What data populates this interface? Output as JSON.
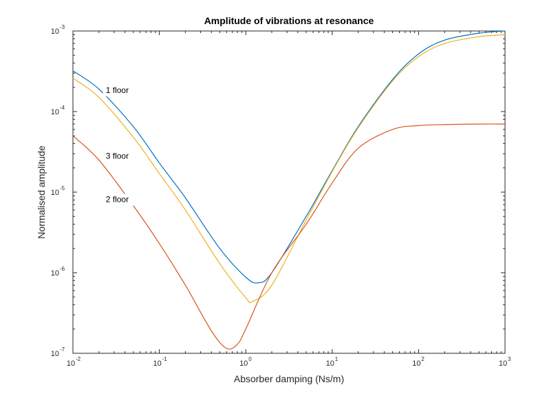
{
  "chart_data": {
    "type": "line",
    "title": "Amplitude of vibrations at resonance",
    "xlabel": "Absorber damping (Ns/m)",
    "ylabel": "Normalised amplitude",
    "xscale": "log",
    "yscale": "log",
    "xlim": [
      0.01,
      1000
    ],
    "ylim": [
      1e-07,
      0.001
    ],
    "grid": false,
    "box": true,
    "x_ticks": [
      {
        "base": "10",
        "exp": "-2",
        "value": 0.01
      },
      {
        "base": "10",
        "exp": "-1",
        "value": 0.1
      },
      {
        "base": "10",
        "exp": "0",
        "value": 1
      },
      {
        "base": "10",
        "exp": "1",
        "value": 10
      },
      {
        "base": "10",
        "exp": "2",
        "value": 100
      },
      {
        "base": "10",
        "exp": "3",
        "value": 1000
      }
    ],
    "y_ticks": [
      {
        "base": "10",
        "exp": "-7",
        "value": 1e-07
      },
      {
        "base": "10",
        "exp": "-6",
        "value": 1e-06
      },
      {
        "base": "10",
        "exp": "-5",
        "value": 1e-05
      },
      {
        "base": "10",
        "exp": "-4",
        "value": 0.0001
      },
      {
        "base": "10",
        "exp": "-3",
        "value": 0.001
      }
    ],
    "series": [
      {
        "color": "#0072BD",
        "x": [
          0.01,
          0.02,
          0.05,
          0.1,
          0.2,
          0.5,
          1,
          1.4,
          2,
          5,
          10,
          20,
          50,
          100,
          200,
          500,
          1000
        ],
        "y": [
          0.00032,
          0.00019,
          6.5e-05,
          2.3e-05,
          8.5e-06,
          2e-06,
          8.8e-07,
          7.5e-07,
          1e-06,
          5e-06,
          1.85e-05,
          6.5e-05,
          0.00025,
          0.00052,
          0.00077,
          0.00094,
          0.001
        ]
      },
      {
        "color": "#EDB120",
        "x": [
          0.01,
          0.02,
          0.05,
          0.1,
          0.2,
          0.5,
          1,
          1.2,
          2,
          5,
          10,
          20,
          50,
          100,
          200,
          500,
          1000
        ],
        "y": [
          0.00026,
          0.00015,
          4.8e-05,
          1.7e-05,
          6e-06,
          1.3e-06,
          4.9e-07,
          4.4e-07,
          7e-07,
          4.5e-06,
          1.8e-05,
          6.3e-05,
          0.00024,
          0.00048,
          0.0007,
          0.00085,
          0.0009
        ]
      },
      {
        "color": "#D95319",
        "x": [
          0.01,
          0.02,
          0.05,
          0.1,
          0.2,
          0.4,
          0.6,
          0.8,
          1,
          2,
          5,
          10,
          20,
          50,
          100,
          200,
          500,
          1000
        ],
        "y": [
          5e-05,
          2.5e-05,
          6.8e-06,
          2.3e-06,
          7e-07,
          1.9e-07,
          1.15e-07,
          1.3e-07,
          2e-07,
          1e-06,
          4e-06,
          1.3e-05,
          3.5e-05,
          6e-05,
          6.7e-05,
          6.9e-05,
          7e-05,
          7e-05
        ]
      }
    ],
    "annotations": [
      {
        "text": "1 floor",
        "x": 0.024,
        "y": 0.00017
      },
      {
        "text": "3 floor",
        "x": 0.024,
        "y": 2.6e-05
      },
      {
        "text": "2 floor",
        "x": 0.024,
        "y": 7.5e-06
      }
    ]
  }
}
